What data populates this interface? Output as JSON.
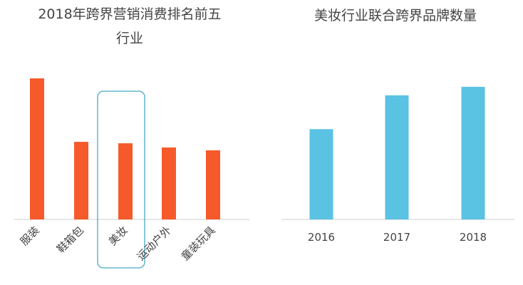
{
  "chart_data": [
    {
      "type": "bar",
      "title": "2018年跨界营销消费排名前五\n行业",
      "categories": [
        "服装",
        "鞋箱包",
        "美妆",
        "运动户外",
        "童装玩具"
      ],
      "values": [
        100,
        55,
        54,
        51,
        49
      ],
      "ylim": [
        0,
        100
      ],
      "highlight": "美妆",
      "grid": false,
      "colors": {
        "bar": "#f65a2b",
        "highlight_box": "#48a7c6",
        "axis": "#d0d0d0"
      }
    },
    {
      "type": "bar",
      "title": "美妆行业联合跨界品牌数量",
      "categories": [
        "2016",
        "2017",
        "2018"
      ],
      "values": [
        64,
        88,
        94
      ],
      "ylim": [
        0,
        100
      ],
      "grid": false,
      "colors": {
        "bar": "#5ac2e2",
        "axis": "#d0d0d0"
      }
    }
  ]
}
